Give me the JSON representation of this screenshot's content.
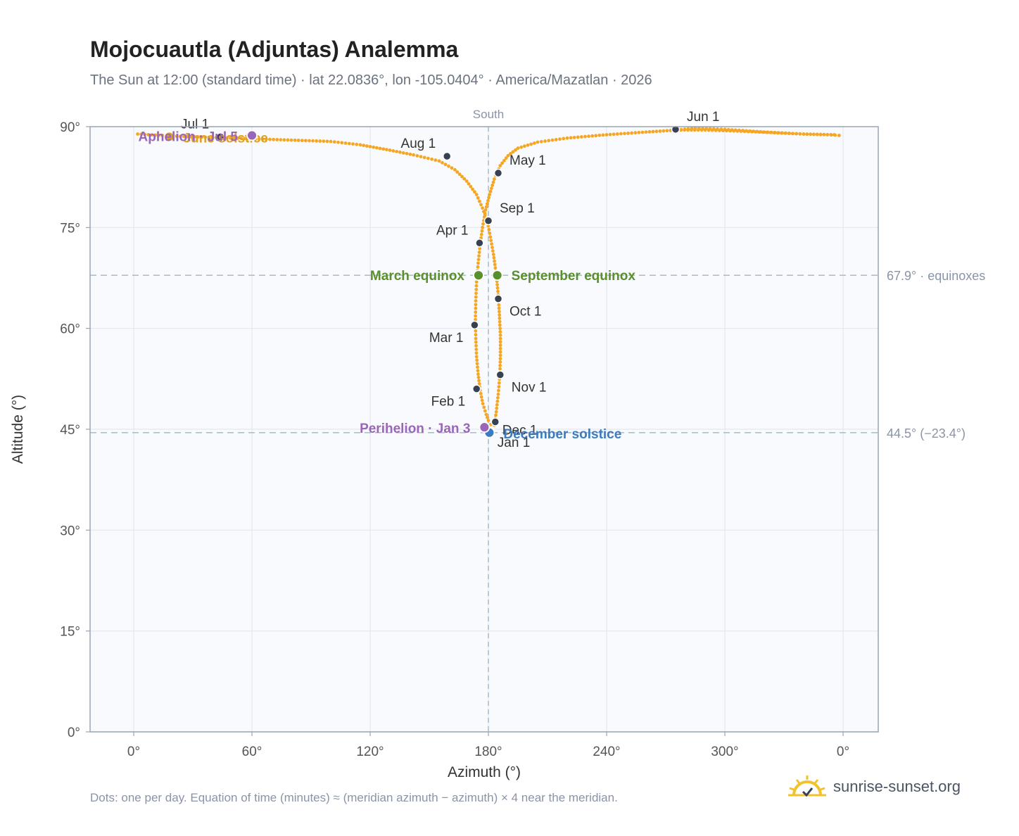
{
  "header": {
    "title": "Mojocuautla (Adjuntas) Analemma",
    "subtitle": "The Sun at 12:00 (standard time) · lat 22.0836°, lon -105.0404° · America/Mazatlan · 2026"
  },
  "footer": {
    "note": "Dots: one per day. Equation of time (minutes) ≈ (meridian azimuth − azimuth) × 4 near the meridian.",
    "brand": "sunrise-sunset.org"
  },
  "colors": {
    "analemma": "#f5a623",
    "month_marker": "#374151",
    "equinox": "#5a8f2e",
    "december_solstice": "#3b7bbf",
    "june_solstice": "#e0a020",
    "perihelion": "#9b66b8",
    "aphelion": "#9b66b8",
    "reference_line": "#aebfcc",
    "plot_background": "#f8fafd",
    "grid": "#e3e8ee"
  },
  "chart_data": {
    "type": "scatter",
    "xlabel": "Azimuth (°)",
    "ylabel": "Altitude (°)",
    "x_ticks": [
      "0°",
      "60°",
      "120°",
      "180°",
      "240°",
      "300°",
      "0°"
    ],
    "y_ticks": [
      "0°",
      "15°",
      "30°",
      "45°",
      "60°",
      "75°",
      "90°"
    ],
    "ylim": [
      0,
      90
    ],
    "grid": true,
    "meridian_label": "South",
    "reference_lines": [
      {
        "altitude": 67.9,
        "label": "67.9° · equinoxes"
      },
      {
        "altitude": 44.5,
        "label": "44.5° (−23.4°)"
      }
    ],
    "series": [
      {
        "points": [
          [
            183.0,
            45.6
          ],
          [
            181.2,
            45.7
          ],
          [
            180.0,
            46.3
          ],
          [
            178.9,
            47.2
          ],
          [
            177.2,
            48.8
          ],
          [
            175.8,
            50.8
          ],
          [
            174.8,
            53.2
          ],
          [
            174.0,
            55.8
          ],
          [
            173.6,
            58.5
          ],
          [
            173.4,
            61.3
          ],
          [
            173.6,
            64.1
          ],
          [
            174.0,
            66.9
          ],
          [
            174.8,
            69.7
          ],
          [
            175.8,
            72.4
          ],
          [
            177.0,
            75.0
          ],
          [
            178.6,
            77.6
          ],
          [
            180.6,
            79.9
          ],
          [
            183.0,
            82.2
          ],
          [
            186.0,
            84.2
          ],
          [
            190.0,
            85.7
          ],
          [
            195.0,
            86.8
          ],
          [
            205.0,
            87.7
          ],
          [
            220.0,
            88.3
          ],
          [
            240.0,
            88.8
          ],
          [
            260.0,
            89.2
          ],
          [
            276.0,
            89.5
          ],
          [
            290.0,
            89.5
          ],
          [
            310.0,
            89.3
          ],
          [
            325.0,
            89.1
          ],
          [
            340.0,
            88.9
          ],
          [
            352.0,
            88.8
          ],
          [
            358.0,
            88.7
          ],
          [
            355.5,
            88.8
          ],
          [
            340.0,
            88.9
          ],
          [
            320.0,
            89.2
          ],
          [
            300.0,
            89.6
          ],
          [
            285.0,
            89.8
          ],
          [
            276.0,
            89.5
          ]
        ]
      },
      {
        "points": [
          [
            2.0,
            88.9
          ],
          [
            20.0,
            88.6
          ],
          [
            40.0,
            88.4
          ],
          [
            60.0,
            88.2
          ],
          [
            80.0,
            88.0
          ],
          [
            100.0,
            87.8
          ],
          [
            115.0,
            87.3
          ],
          [
            130.0,
            86.5
          ],
          [
            142.0,
            85.8
          ],
          [
            155.0,
            84.9
          ],
          [
            163.0,
            83.6
          ],
          [
            169.0,
            81.9
          ],
          [
            174.0,
            79.9
          ],
          [
            177.0,
            77.9
          ],
          [
            179.6,
            75.8
          ],
          [
            181.0,
            73.6
          ],
          [
            182.6,
            71.0
          ],
          [
            184.0,
            68.0
          ],
          [
            185.0,
            65.0
          ],
          [
            185.6,
            62.0
          ],
          [
            186.1,
            59.0
          ],
          [
            186.1,
            56.0
          ],
          [
            185.8,
            53.0
          ],
          [
            185.0,
            50.2
          ],
          [
            184.0,
            47.6
          ],
          [
            183.0,
            45.6
          ]
        ]
      }
    ],
    "month_markers": [
      {
        "label": "Jan 1",
        "x": 181.0,
        "y": 44.7
      },
      {
        "label": "Feb 1",
        "x": 174.0,
        "y": 51.0
      },
      {
        "label": "Mar 1",
        "x": 173.0,
        "y": 60.5
      },
      {
        "label": "Apr 1",
        "x": 175.5,
        "y": 72.7
      },
      {
        "label": "May 1",
        "x": 185.0,
        "y": 83.1
      },
      {
        "label": "Jun 1",
        "x": 275.0,
        "y": 89.6
      },
      {
        "label": "Jul 1",
        "x": 44.0,
        "y": 88.5
      },
      {
        "label": "Aug 1",
        "x": 159.0,
        "y": 85.6
      },
      {
        "label": "Sep 1",
        "x": 180.0,
        "y": 76.0
      },
      {
        "label": "Oct 1",
        "x": 185.0,
        "y": 64.4
      },
      {
        "label": "Nov 1",
        "x": 186.0,
        "y": 53.1
      },
      {
        "label": "Dec 1",
        "x": 183.5,
        "y": 46.1
      }
    ],
    "events": [
      {
        "label": "March equinox",
        "x": 175.0,
        "y": 67.9,
        "kind": "equinox"
      },
      {
        "label": "September equinox",
        "x": 184.5,
        "y": 67.9,
        "kind": "equinox"
      },
      {
        "label": "December solstice",
        "x": 180.5,
        "y": 44.5,
        "kind": "december_solstice"
      },
      {
        "label": "June solstice",
        "x": 18.0,
        "y": 88.5,
        "kind": "june_solstice"
      },
      {
        "label": "Perihelion · Jan 3",
        "x": 178.0,
        "y": 45.3,
        "kind": "perihelion"
      },
      {
        "label": "Aphelion · Jul 5",
        "x": 60.0,
        "y": 88.7,
        "kind": "aphelion"
      }
    ]
  }
}
